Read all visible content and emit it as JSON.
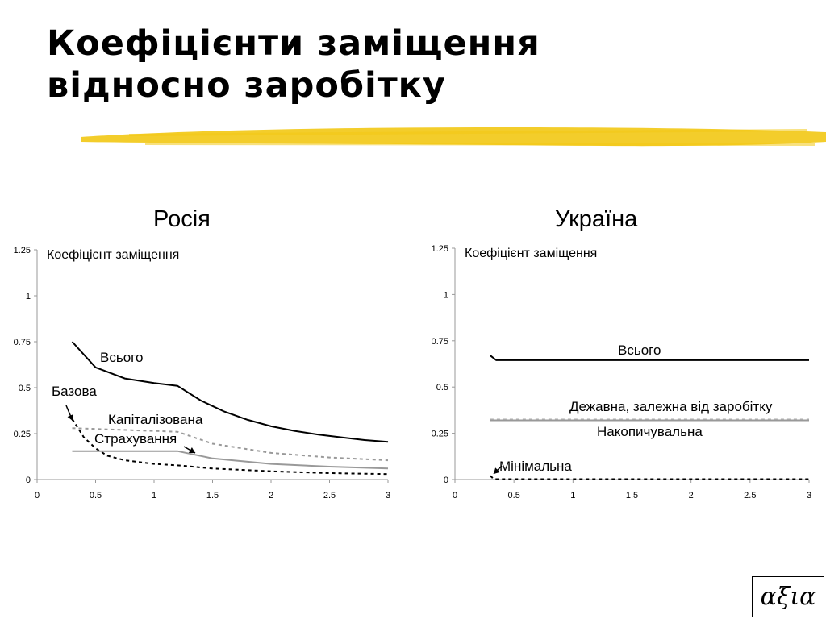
{
  "slide": {
    "title_line1": "Коефіцієнти заміщення",
    "title_line2": "відносно заробітку",
    "logo_text": "αξια",
    "highlight_color": "#F2C814"
  },
  "chart_data": [
    {
      "type": "line",
      "title": "Росія",
      "ylabel": "Коефіцієнт заміщення",
      "xlim": [
        0,
        3
      ],
      "ylim": [
        0,
        1.25
      ],
      "x_ticks": [
        "0",
        "0.5",
        "1",
        "1.5",
        "2",
        "2.5",
        "3"
      ],
      "y_ticks": [
        "0",
        "0.25",
        "0.5",
        "0.75",
        "1",
        "1.25"
      ],
      "grid": false,
      "series": [
        {
          "name": "Всього",
          "style": "solid",
          "color": "#000000",
          "x": [
            0.3,
            0.5,
            0.75,
            1.0,
            1.2,
            1.4,
            1.6,
            1.8,
            2.0,
            2.2,
            2.4,
            2.6,
            2.8,
            3.0
          ],
          "y": [
            0.75,
            0.61,
            0.55,
            0.525,
            0.51,
            0.43,
            0.37,
            0.325,
            0.29,
            0.265,
            0.245,
            0.23,
            0.215,
            0.205
          ]
        },
        {
          "name": "Базова",
          "style": "dashed",
          "color": "#000000",
          "x": [
            0.3,
            0.4,
            0.5,
            0.6,
            0.75,
            1.0,
            1.25,
            1.5,
            2.0,
            2.5,
            3.0
          ],
          "y": [
            0.33,
            0.23,
            0.17,
            0.13,
            0.105,
            0.085,
            0.075,
            0.06,
            0.045,
            0.035,
            0.03
          ]
        },
        {
          "name": "Капіталізована",
          "style": "dashed",
          "color": "#999999",
          "x": [
            0.3,
            1.2,
            1.5,
            2.0,
            2.5,
            3.0
          ],
          "y": [
            0.28,
            0.26,
            0.195,
            0.145,
            0.12,
            0.105
          ]
        },
        {
          "name": "Страхування",
          "style": "solid",
          "color": "#999999",
          "x": [
            0.3,
            1.2,
            1.5,
            2.0,
            2.5,
            3.0
          ],
          "y": [
            0.155,
            0.155,
            0.115,
            0.085,
            0.07,
            0.06
          ]
        }
      ]
    },
    {
      "type": "line",
      "title": "Україна",
      "ylabel": "Коефіцієнт заміщення",
      "xlim": [
        0,
        3
      ],
      "ylim": [
        0,
        1.25
      ],
      "x_ticks": [
        "0",
        "0.5",
        "1",
        "1.5",
        "2",
        "2.5",
        "3"
      ],
      "y_ticks": [
        "0",
        "0.25",
        "0.5",
        "0.75",
        "1",
        "1.25"
      ],
      "grid": false,
      "series": [
        {
          "name": "Всього",
          "style": "solid",
          "color": "#000000",
          "x": [
            0.3,
            0.35,
            3.0
          ],
          "y": [
            0.67,
            0.645,
            0.645
          ]
        },
        {
          "name": "Дежавна, залежна від заробітку",
          "style": "dashed",
          "color": "#bbbbbb",
          "x": [
            0.3,
            3.0
          ],
          "y": [
            0.325,
            0.325
          ]
        },
        {
          "name": "Накопичувальна",
          "style": "solid",
          "color": "#999999",
          "x": [
            0.3,
            3.0
          ],
          "y": [
            0.32,
            0.32
          ]
        },
        {
          "name": "Мінімальна",
          "style": "dashed",
          "color": "#000000",
          "x": [
            0.3,
            0.33,
            3.0
          ],
          "y": [
            0.02,
            0.002,
            0.002
          ]
        }
      ]
    }
  ]
}
